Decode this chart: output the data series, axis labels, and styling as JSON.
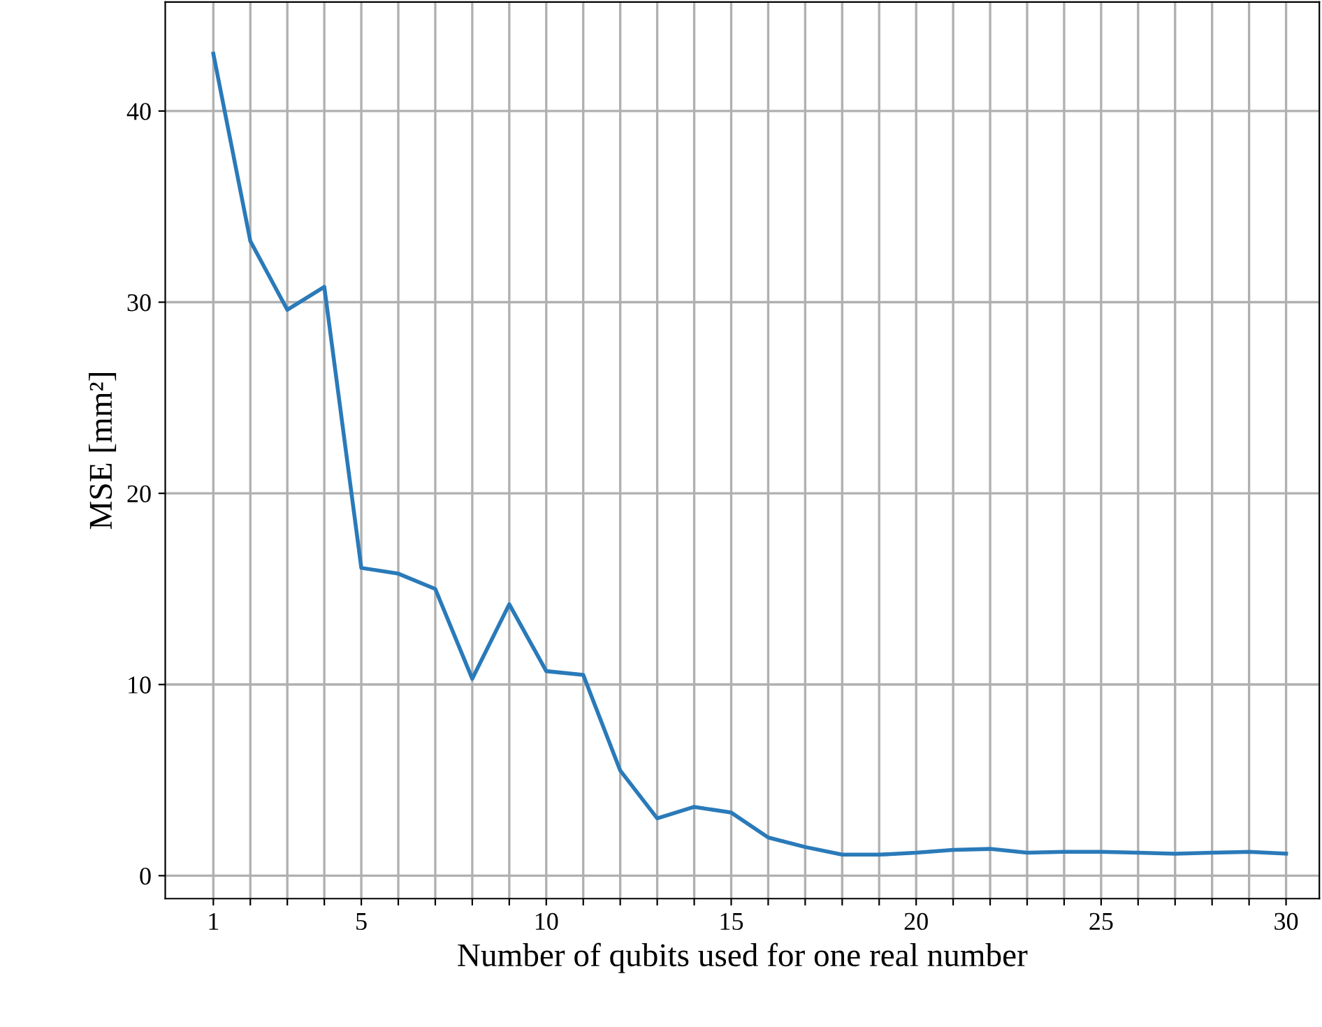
{
  "chart_data": {
    "type": "line",
    "xlabel": "Number of qubits used for one real number",
    "ylabel": "MSE [mm²]",
    "x": [
      1,
      2,
      3,
      4,
      5,
      6,
      7,
      8,
      9,
      10,
      11,
      12,
      13,
      14,
      15,
      16,
      17,
      18,
      19,
      20,
      21,
      22,
      23,
      24,
      25,
      26,
      27,
      28,
      29,
      30
    ],
    "series": [
      {
        "color": "#2a7ab9",
        "values": [
          43,
          33.2,
          29.6,
          30.8,
          16.1,
          15.8,
          15.0,
          10.3,
          14.2,
          10.7,
          10.5,
          5.5,
          3.0,
          3.6,
          3.3,
          2.0,
          1.5,
          1.1,
          1.1,
          1.2,
          1.35,
          1.4,
          1.2,
          1.25,
          1.25,
          1.2,
          1.15,
          1.2,
          1.25,
          1.15
        ]
      }
    ],
    "xlim": [
      -0.3,
      30.9
    ],
    "ylim": [
      -1.2,
      45.7
    ],
    "xticks": [
      1,
      {
        "value": 2,
        "label": null
      },
      {
        "value": 3,
        "label": null
      },
      {
        "value": 4,
        "label": null
      },
      5,
      {
        "value": 6,
        "label": null
      },
      {
        "value": 7,
        "label": null
      },
      {
        "value": 8,
        "label": null
      },
      {
        "value": 9,
        "label": null
      },
      10,
      {
        "value": 11,
        "label": null
      },
      {
        "value": 12,
        "label": null
      },
      {
        "value": 13,
        "label": null
      },
      {
        "value": 14,
        "label": null
      },
      15,
      {
        "value": 16,
        "label": null
      },
      {
        "value": 17,
        "label": null
      },
      {
        "value": 18,
        "label": null
      },
      {
        "value": 19,
        "label": null
      },
      20,
      {
        "value": 21,
        "label": null
      },
      {
        "value": 22,
        "label": null
      },
      {
        "value": 23,
        "label": null
      },
      {
        "value": 24,
        "label": null
      },
      25,
      {
        "value": 26,
        "label": null
      },
      {
        "value": 27,
        "label": null
      },
      {
        "value": 28,
        "label": null
      },
      {
        "value": 29,
        "label": null
      },
      30
    ],
    "yticks": [
      0,
      10,
      20,
      30,
      40
    ],
    "grid": true,
    "marker": "none",
    "line_style": "solid",
    "legend": false
  }
}
